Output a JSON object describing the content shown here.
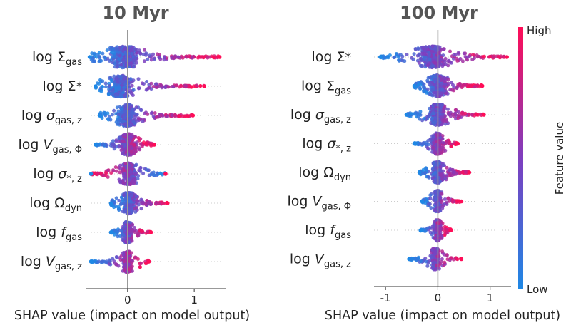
{
  "colors": {
    "low": "#1e88e5",
    "mid": "#7e3ebf",
    "high": "#ff0d57"
  },
  "colorbar": {
    "high": "High",
    "low": "Low",
    "label": "Feature value"
  },
  "chart_data": [
    {
      "type": "scatter",
      "subtype": "shap-beeswarm",
      "title": "10 Myr",
      "xlabel": "SHAP value (impact on model output)",
      "xlim": [
        -0.63,
        1.47
      ],
      "xticks": [
        0,
        1
      ],
      "features": [
        {
          "name": "log Σgas",
          "label": "log Σ",
          "sub": "gas",
          "italic_base": false,
          "min": -0.57,
          "max": 1.38,
          "peak": -0.05,
          "spread": 0.33
        },
        {
          "name": "log Σ*",
          "label": "log Σ",
          "sub": "*",
          "italic_base": false,
          "min": -0.48,
          "max": 1.15,
          "peak": -0.1,
          "spread": 0.25
        },
        {
          "name": "log σgas,z",
          "label": "log σ",
          "sub": "gas, z",
          "italic_base": true,
          "min": -0.42,
          "max": 0.98,
          "peak": 0.0,
          "spread": 0.22
        },
        {
          "name": "log Vgas,Φ",
          "label": "log V",
          "sub": "gas, Φ",
          "italic_base": true,
          "min": -0.48,
          "max": 0.4,
          "peak": 0.02,
          "spread": 0.18
        },
        {
          "name": "log σ*,z",
          "label": "log σ",
          "sub": "*, z",
          "italic_base": true,
          "min": -0.55,
          "max": 0.57,
          "peak": 0.02,
          "spread": 0.15
        },
        {
          "name": "log Ωdyn",
          "label": "log Ω",
          "sub": "dyn",
          "italic_base": false,
          "min": -0.25,
          "max": 0.6,
          "peak": 0.02,
          "spread": 0.15
        },
        {
          "name": "log fgas",
          "label": "log f",
          "sub": "gas",
          "italic_base": true,
          "min": -0.25,
          "max": 0.35,
          "peak": 0.0,
          "spread": 0.12
        },
        {
          "name": "log Vgas,z",
          "label": "log V",
          "sub": "gas, z",
          "italic_base": true,
          "min": -0.55,
          "max": 0.32,
          "peak": 0.0,
          "spread": 0.1
        }
      ]
    },
    {
      "type": "scatter",
      "subtype": "shap-beeswarm",
      "title": "100 Myr",
      "xlabel": "SHAP value (impact on model output)",
      "xlim": [
        -1.22,
        1.4
      ],
      "xticks": [
        -1,
        0,
        1
      ],
      "features": [
        {
          "name": "log Σ*",
          "label": "log Σ",
          "sub": "*",
          "italic_base": false,
          "min": -1.1,
          "max": 1.32,
          "peak": -0.1,
          "spread": 0.4
        },
        {
          "name": "log Σgas",
          "label": "log Σ",
          "sub": "gas",
          "italic_base": false,
          "min": -0.45,
          "max": 0.85,
          "peak": 0.0,
          "spread": 0.25
        },
        {
          "name": "log σgas,z",
          "label": "log σ",
          "sub": "gas, z",
          "italic_base": true,
          "min": -0.6,
          "max": 0.88,
          "peak": 0.0,
          "spread": 0.22
        },
        {
          "name": "log σ*,z",
          "label": "log σ",
          "sub": "*, z",
          "italic_base": true,
          "min": -0.45,
          "max": 0.38,
          "peak": 0.0,
          "spread": 0.15
        },
        {
          "name": "log Ωdyn",
          "label": "log Ω",
          "sub": "dyn",
          "italic_base": false,
          "min": -0.35,
          "max": 0.6,
          "peak": 0.0,
          "spread": 0.15
        },
        {
          "name": "log Vgas,Φ",
          "label": "log V",
          "sub": "gas, Φ",
          "italic_base": true,
          "min": -0.3,
          "max": 0.45,
          "peak": 0.0,
          "spread": 0.1
        },
        {
          "name": "log fgas",
          "label": "log f",
          "sub": "gas",
          "italic_base": true,
          "min": -0.33,
          "max": 0.25,
          "peak": 0.0,
          "spread": 0.1
        },
        {
          "name": "log Vgas,z",
          "label": "log V",
          "sub": "gas, z",
          "italic_base": true,
          "min": -0.55,
          "max": 0.45,
          "peak": -0.05,
          "spread": 0.12
        }
      ]
    }
  ]
}
